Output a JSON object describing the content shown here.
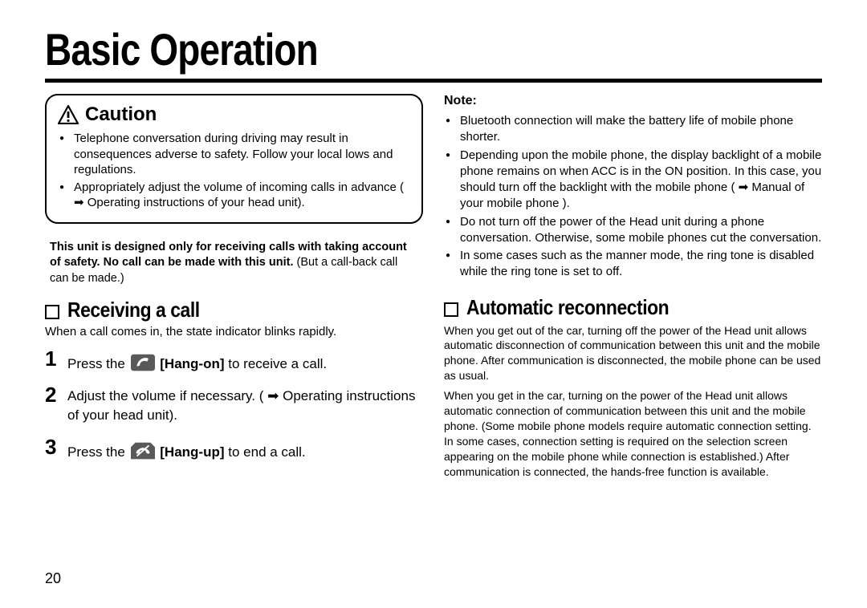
{
  "page": {
    "title": "Basic Operation",
    "number": "20",
    "colors": {
      "text": "#000000",
      "background": "#ffffff",
      "rule": "#000000",
      "icon_bg": "#595959",
      "icon_fg": "#ffffff"
    },
    "fonts": {
      "title_size_pt": 42,
      "section_size_pt": 20,
      "body_size_pt": 11,
      "step_body_size_pt": 13
    }
  },
  "left": {
    "caution": {
      "label": "Caution",
      "items": [
        "Telephone conversation during driving may result in consequences adverse to safety. Follow your local lows and regulations.",
        "Appropriately adjust the volume of incoming calls in advance ( ➡ Operating instructions of your head unit)."
      ]
    },
    "designed_note": {
      "bold": "This unit is designed only for receiving calls with taking account of safety. No call can be made with this unit.",
      "rest": " (But a call-back call can be made.)"
    },
    "receiving": {
      "heading": "Receiving a call",
      "sub": "When a call comes in, the state indicator blinks rapidly.",
      "steps": [
        {
          "num": "1",
          "pre": "Press the ",
          "btn": "hang-on",
          "bold": " [Hang-on]",
          "post": " to receive a call."
        },
        {
          "num": "2",
          "pre": "Adjust the volume if necessary. ( ➡ Operating instructions of your head unit).",
          "btn": null,
          "bold": "",
          "post": ""
        },
        {
          "num": "3",
          "pre": "Press the ",
          "btn": "hang-up",
          "bold": " [Hang-up]",
          "post": " to end a call."
        }
      ]
    }
  },
  "right": {
    "note": {
      "label": "Note:",
      "items": [
        "Bluetooth connection will make the battery life of mobile phone shorter.",
        "Depending upon the mobile phone, the display backlight of a mobile phone remains on when ACC is in the ON position. In this case, you should turn off the backlight with the mobile phone ( ➡ Manual of your mobile phone ).",
        "Do not turn off the power of the Head unit during a phone conversation. Otherwise, some mobile phones cut the conversation.",
        "In some cases such as the manner mode, the ring tone is disabled while the ring tone is set to off."
      ]
    },
    "auto": {
      "heading": "Automatic reconnection",
      "para1": "When you get out of the car, turning off the power of the Head unit allows automatic disconnection of communication between this unit and the mobile phone. After communication is disconnected, the mobile phone can be used as usual.",
      "para2": "When you get in the car, turning on the power of the Head unit allows automatic connection of communication between this unit and the mobile phone. (Some mobile phone models require automatic connection setting. In some cases, connection setting is required on the selection screen appearing on the mobile phone while connection is established.) After communication is connected, the hands-free function is available."
    }
  }
}
